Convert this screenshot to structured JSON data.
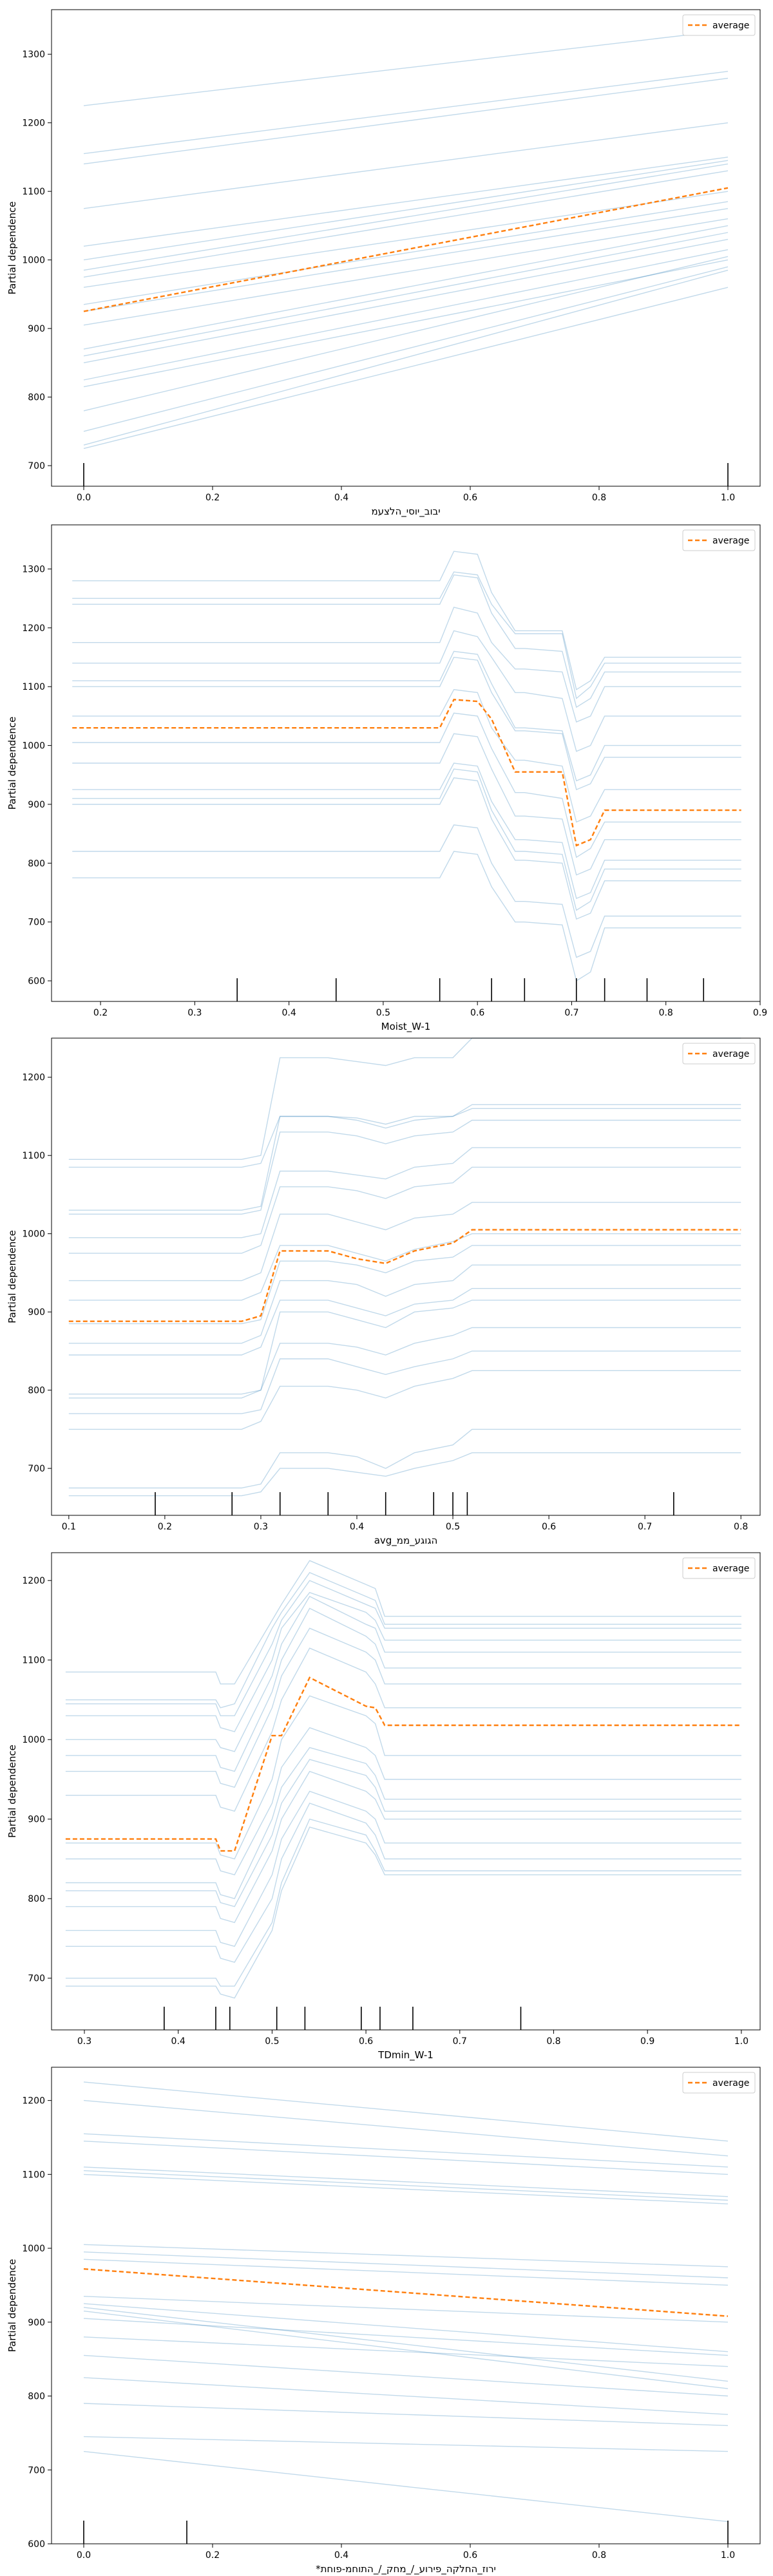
{
  "chart_data": [
    {
      "type": "line",
      "title": "",
      "xlabel": "יבוב_יוסי_הלצעמ",
      "ylabel": "Partial dependence",
      "xlim": [
        -0.05,
        1.05
      ],
      "ylim": [
        670,
        1365
      ],
      "xticks": [
        0.0,
        0.2,
        0.4,
        0.6,
        0.8,
        1.0
      ],
      "xtick_labels": [
        "0.0",
        "0.2",
        "0.4",
        "0.6",
        "0.8",
        "1.0"
      ],
      "yticks": [
        700,
        800,
        900,
        1000,
        1100,
        1200,
        1300
      ],
      "ytick_labels": [
        "700",
        "800",
        "900",
        "1000",
        "1100",
        "1200",
        "1300"
      ],
      "legend": {
        "position": "top-right",
        "entries": [
          "average"
        ]
      },
      "x": [
        0.0,
        1.0
      ],
      "average": [
        925,
        1105
      ],
      "ice_lines": [
        [
          1225,
          1335
        ],
        [
          1155,
          1275
        ],
        [
          1140,
          1265
        ],
        [
          1075,
          1200
        ],
        [
          1020,
          1150
        ],
        [
          1000,
          1145
        ],
        [
          985,
          1140
        ],
        [
          975,
          1130
        ],
        [
          960,
          1100
        ],
        [
          935,
          1085
        ],
        [
          925,
          1075
        ],
        [
          905,
          1060
        ],
        [
          870,
          1050
        ],
        [
          860,
          1040
        ],
        [
          850,
          1030
        ],
        [
          825,
          1015
        ],
        [
          815,
          1000
        ],
        [
          780,
          1005
        ],
        [
          750,
          990
        ],
        [
          730,
          985
        ],
        [
          725,
          960
        ]
      ],
      "rug": [
        0.0,
        1.0
      ]
    },
    {
      "type": "line",
      "title": "",
      "xlabel": "Moist_W-1",
      "ylabel": "Partial dependence",
      "xlim": [
        0.148,
        0.9
      ],
      "ylim": [
        565,
        1375
      ],
      "xticks": [
        0.2,
        0.3,
        0.4,
        0.5,
        0.6,
        0.7,
        0.8,
        0.9
      ],
      "xtick_labels": [
        "0.2",
        "0.3",
        "0.4",
        "0.5",
        "0.6",
        "0.7",
        "0.8",
        "0.9"
      ],
      "yticks": [
        600,
        700,
        800,
        900,
        1000,
        1100,
        1200,
        1300
      ],
      "ytick_labels": [
        "600",
        "700",
        "800",
        "900",
        "1000",
        "1100",
        "1200",
        "1300"
      ],
      "legend": {
        "position": "top-right",
        "entries": [
          "average"
        ]
      },
      "x": [
        0.17,
        0.56,
        0.575,
        0.6,
        0.615,
        0.64,
        0.65,
        0.69,
        0.705,
        0.72,
        0.735,
        0.8,
        0.88
      ],
      "average": [
        1030,
        1030,
        1078,
        1075,
        1045,
        955,
        955,
        955,
        830,
        840,
        890,
        890,
        890
      ],
      "ice_lines": [
        [
          1280,
          1280,
          1330,
          1325,
          1260,
          1195,
          1195,
          1195,
          1095,
          1110,
          1150,
          1150,
          1150
        ],
        [
          1250,
          1250,
          1295,
          1290,
          1240,
          1190,
          1190,
          1190,
          1080,
          1100,
          1140,
          1140,
          1140
        ],
        [
          1240,
          1240,
          1290,
          1285,
          1225,
          1165,
          1165,
          1160,
          1065,
          1080,
          1125,
          1125,
          1125
        ],
        [
          1175,
          1175,
          1235,
          1225,
          1175,
          1130,
          1130,
          1125,
          1040,
          1050,
          1100,
          1100,
          1100
        ],
        [
          1140,
          1140,
          1195,
          1185,
          1150,
          1090,
          1090,
          1080,
          990,
          1000,
          1050,
          1050,
          1050
        ],
        [
          1110,
          1110,
          1160,
          1155,
          1105,
          1030,
          1030,
          1025,
          940,
          950,
          1000,
          1000,
          1000
        ],
        [
          1100,
          1100,
          1150,
          1145,
          1090,
          1025,
          1025,
          1020,
          925,
          935,
          980,
          980,
          980
        ],
        [
          1050,
          1050,
          1095,
          1090,
          1030,
          975,
          975,
          965,
          870,
          880,
          925,
          925,
          925
        ],
        [
          1005,
          1005,
          1055,
          1050,
          995,
          920,
          920,
          910,
          810,
          825,
          870,
          870,
          870
        ],
        [
          970,
          970,
          1020,
          1015,
          960,
          880,
          880,
          875,
          780,
          790,
          840,
          840,
          840
        ],
        [
          925,
          925,
          970,
          965,
          905,
          840,
          840,
          835,
          740,
          750,
          805,
          805,
          805
        ],
        [
          910,
          910,
          960,
          955,
          890,
          820,
          820,
          815,
          720,
          735,
          790,
          790,
          790
        ],
        [
          900,
          900,
          945,
          940,
          875,
          805,
          805,
          800,
          705,
          715,
          770,
          770,
          770
        ],
        [
          820,
          820,
          865,
          860,
          800,
          735,
          735,
          730,
          640,
          650,
          710,
          710,
          710
        ],
        [
          775,
          775,
          820,
          815,
          760,
          700,
          700,
          695,
          600,
          615,
          690,
          690,
          690
        ]
      ],
      "rug": [
        0.345,
        0.45,
        0.56,
        0.615,
        0.65,
        0.705,
        0.735,
        0.78,
        0.84
      ]
    },
    {
      "type": "line",
      "title": "",
      "xlabel": "avg_הגוגע_ממ",
      "ylabel": "Partial dependence",
      "xlim": [
        0.082,
        0.82
      ],
      "ylim": [
        640,
        1250
      ],
      "xticks": [
        0.1,
        0.2,
        0.3,
        0.4,
        0.5,
        0.6,
        0.7,
        0.8
      ],
      "xtick_labels": [
        "0.1",
        "0.2",
        "0.3",
        "0.4",
        "0.5",
        "0.6",
        "0.7",
        "0.8"
      ],
      "yticks": [
        700,
        800,
        900,
        1000,
        1100,
        1200
      ],
      "ytick_labels": [
        "700",
        "800",
        "900",
        "1000",
        "1100",
        "1200"
      ],
      "legend": {
        "position": "top-right",
        "entries": [
          "average"
        ]
      },
      "x": [
        0.1,
        0.28,
        0.3,
        0.32,
        0.37,
        0.4,
        0.43,
        0.46,
        0.5,
        0.52,
        0.8
      ],
      "average": [
        888,
        888,
        895,
        978,
        978,
        968,
        962,
        978,
        988,
        1005,
        1005
      ],
      "ice_lines": [
        [
          1095,
          1095,
          1100,
          1225,
          1225,
          1220,
          1215,
          1225,
          1225,
          1250,
          1250
        ],
        [
          1085,
          1085,
          1090,
          1150,
          1150,
          1148,
          1140,
          1150,
          1150,
          1160,
          1160
        ],
        [
          1030,
          1030,
          1035,
          1150,
          1150,
          1145,
          1135,
          1145,
          1150,
          1165,
          1165
        ],
        [
          1025,
          1025,
          1030,
          1130,
          1130,
          1125,
          1115,
          1125,
          1130,
          1145,
          1145
        ],
        [
          995,
          995,
          1000,
          1080,
          1080,
          1075,
          1070,
          1085,
          1090,
          1110,
          1110
        ],
        [
          975,
          975,
          985,
          1060,
          1060,
          1055,
          1045,
          1060,
          1065,
          1085,
          1085
        ],
        [
          940,
          940,
          950,
          1025,
          1025,
          1015,
          1005,
          1020,
          1025,
          1040,
          1040
        ],
        [
          915,
          915,
          925,
          985,
          985,
          975,
          965,
          980,
          990,
          1000,
          1000
        ],
        [
          885,
          885,
          890,
          965,
          965,
          960,
          950,
          965,
          970,
          985,
          985
        ],
        [
          860,
          860,
          870,
          940,
          940,
          935,
          920,
          935,
          940,
          960,
          960
        ],
        [
          845,
          845,
          855,
          915,
          915,
          905,
          895,
          910,
          915,
          930,
          930
        ],
        [
          795,
          795,
          800,
          900,
          900,
          890,
          880,
          900,
          905,
          915,
          915
        ],
        [
          790,
          790,
          800,
          860,
          860,
          855,
          845,
          860,
          870,
          880,
          880
        ],
        [
          770,
          770,
          775,
          840,
          840,
          830,
          820,
          830,
          840,
          850,
          850
        ],
        [
          750,
          750,
          760,
          805,
          805,
          800,
          790,
          805,
          815,
          825,
          825
        ],
        [
          675,
          675,
          680,
          720,
          720,
          715,
          700,
          720,
          730,
          750,
          750
        ],
        [
          665,
          665,
          670,
          700,
          700,
          695,
          690,
          700,
          710,
          720,
          720
        ]
      ],
      "rug": [
        0.19,
        0.27,
        0.32,
        0.37,
        0.43,
        0.48,
        0.5,
        0.515,
        0.73
      ]
    },
    {
      "type": "line",
      "title": "",
      "xlabel": "TDmin_W-1",
      "ylabel": "Partial dependence",
      "xlim": [
        0.265,
        1.02
      ],
      "ylim": [
        635,
        1235
      ],
      "xticks": [
        0.3,
        0.4,
        0.5,
        0.6,
        0.7,
        0.8,
        0.9,
        1.0
      ],
      "xtick_labels": [
        "0.3",
        "0.4",
        "0.5",
        "0.6",
        "0.7",
        "0.8",
        "0.9",
        "1.0"
      ],
      "yticks": [
        700,
        800,
        900,
        1000,
        1100,
        1200
      ],
      "ytick_labels": [
        "700",
        "800",
        "900",
        "1000",
        "1100",
        "1200"
      ],
      "legend": {
        "position": "top-right",
        "entries": [
          "average"
        ]
      },
      "x": [
        0.28,
        0.44,
        0.445,
        0.46,
        0.5,
        0.51,
        0.54,
        0.6,
        0.61,
        0.62,
        1.0
      ],
      "average": [
        875,
        875,
        860,
        860,
        1005,
        1005,
        1078,
        1042,
        1040,
        1018,
        1018
      ],
      "ice_lines": [
        [
          1085,
          1085,
          1070,
          1070,
          1150,
          1170,
          1225,
          1195,
          1190,
          1155,
          1155
        ],
        [
          1050,
          1050,
          1040,
          1045,
          1140,
          1160,
          1210,
          1180,
          1175,
          1145,
          1145
        ],
        [
          1045,
          1045,
          1030,
          1030,
          1120,
          1150,
          1200,
          1170,
          1165,
          1140,
          1140
        ],
        [
          1030,
          1030,
          1015,
          1010,
          1100,
          1140,
          1185,
          1160,
          1150,
          1125,
          1125
        ],
        [
          1000,
          1000,
          990,
          985,
          1080,
          1120,
          1180,
          1145,
          1140,
          1110,
          1110
        ],
        [
          980,
          980,
          965,
          960,
          1060,
          1100,
          1165,
          1130,
          1120,
          1090,
          1090
        ],
        [
          960,
          960,
          945,
          940,
          1040,
          1080,
          1140,
          1110,
          1100,
          1070,
          1070
        ],
        [
          930,
          930,
          915,
          910,
          1010,
          1050,
          1115,
          1085,
          1070,
          1040,
          1040
        ],
        [
          870,
          870,
          855,
          850,
          950,
          1000,
          1055,
          1030,
          1020,
          980,
          980
        ],
        [
          850,
          850,
          835,
          830,
          920,
          965,
          1015,
          990,
          980,
          950,
          950
        ],
        [
          820,
          820,
          805,
          800,
          900,
          940,
          990,
          970,
          955,
          925,
          925
        ],
        [
          810,
          810,
          795,
          790,
          880,
          920,
          975,
          955,
          940,
          910,
          910
        ],
        [
          790,
          790,
          775,
          770,
          860,
          900,
          960,
          935,
          925,
          900,
          900
        ],
        [
          760,
          760,
          745,
          740,
          830,
          875,
          935,
          910,
          900,
          870,
          870
        ],
        [
          740,
          740,
          725,
          720,
          800,
          850,
          920,
          895,
          880,
          850,
          850
        ],
        [
          700,
          700,
          690,
          690,
          770,
          820,
          900,
          880,
          860,
          835,
          835
        ],
        [
          690,
          690,
          680,
          675,
          760,
          810,
          890,
          870,
          855,
          830,
          830
        ]
      ],
      "rug": [
        0.385,
        0.44,
        0.455,
        0.505,
        0.535,
        0.595,
        0.615,
        0.65,
        0.765
      ]
    },
    {
      "type": "line",
      "title": "",
      "xlabel": "*ירוז_החלקה_פירוע_/_מחק_/_התוחמ-פוחת",
      "ylabel": "Partial dependence",
      "xlim": [
        -0.05,
        1.05
      ],
      "ylim": [
        600,
        1245
      ],
      "xticks": [
        0.0,
        0.2,
        0.4,
        0.6,
        0.8,
        1.0
      ],
      "xtick_labels": [
        "0.0",
        "0.2",
        "0.4",
        "0.6",
        "0.8",
        "1.0"
      ],
      "yticks": [
        600,
        700,
        800,
        900,
        1000,
        1100,
        1200
      ],
      "ytick_labels": [
        "600",
        "700",
        "800",
        "900",
        "1000",
        "1100",
        "1200"
      ],
      "legend": {
        "position": "top-right",
        "entries": [
          "average"
        ]
      },
      "x": [
        0.0,
        1.0
      ],
      "average": [
        972,
        908
      ],
      "ice_lines": [
        [
          1225,
          1145
        ],
        [
          1200,
          1125
        ],
        [
          1155,
          1110
        ],
        [
          1145,
          1100
        ],
        [
          1110,
          1070
        ],
        [
          1105,
          1065
        ],
        [
          1100,
          1060
        ],
        [
          1005,
          975
        ],
        [
          995,
          960
        ],
        [
          985,
          950
        ],
        [
          935,
          900
        ],
        [
          925,
          860
        ],
        [
          920,
          820
        ],
        [
          915,
          810
        ],
        [
          905,
          855
        ],
        [
          880,
          840
        ],
        [
          855,
          800
        ],
        [
          825,
          775
        ],
        [
          790,
          760
        ],
        [
          745,
          725
        ],
        [
          725,
          630
        ]
      ],
      "rug": [
        0.0,
        0.16,
        1.0
      ]
    }
  ],
  "colors": {
    "average": "#ff7f0e",
    "ice": "#1f77b4",
    "axes": "#000000",
    "background": "#ffffff",
    "legend_border": "#cccccc"
  }
}
